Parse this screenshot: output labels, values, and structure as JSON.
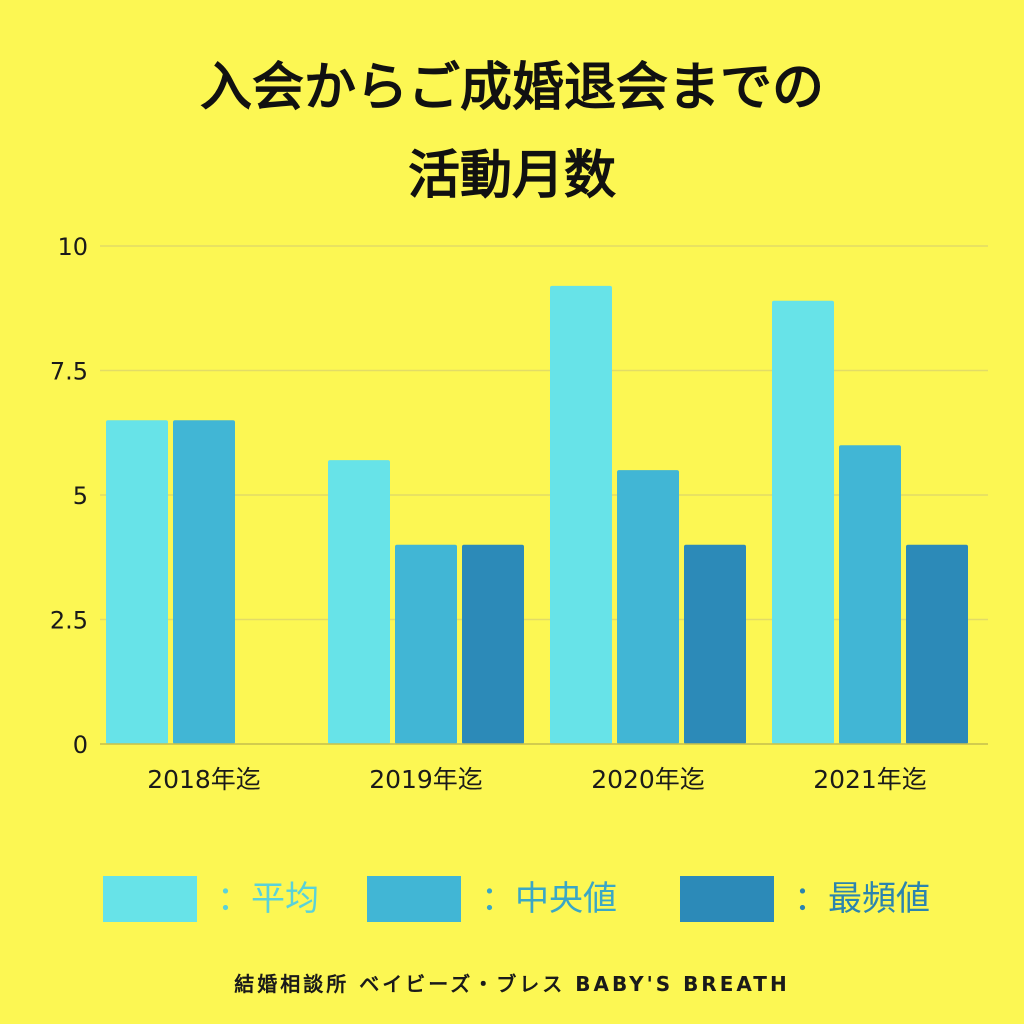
{
  "colors": {
    "background": "#fcf753",
    "gridline": "#e2dc66",
    "axis_text": "#1a1a1a",
    "title_text": "#111111",
    "footer_text": "#1a1a1a"
  },
  "title": {
    "line1": "入会からご成婚退会までの",
    "line2": "活動月数"
  },
  "legend": [
    {
      "color": "#67e3e8",
      "label": "：平均",
      "label_color": "#5ad2d9"
    },
    {
      "color": "#41b6d5",
      "label": "：中央値",
      "label_color": "#3aa7c6"
    },
    {
      "color": "#2c8ab8",
      "label": "：最頻値",
      "label_color": "#2b84ae"
    }
  ],
  "footer": {
    "text": "結婚相談所 ベイビーズ・ブレス BABY'S BREATH"
  },
  "chart_data": {
    "type": "bar",
    "categories": [
      "2018年迄",
      "2019年迄",
      "2020年迄",
      "2021年迄"
    ],
    "series": [
      {
        "name": "平均",
        "color": "#67e3e8",
        "values": [
          6.5,
          5.7,
          9.2,
          8.9
        ]
      },
      {
        "name": "中央値",
        "color": "#41b6d5",
        "values": [
          6.5,
          4.0,
          5.5,
          6.0
        ]
      },
      {
        "name": "最頻値",
        "color": "#2c8ab8",
        "values": [
          null,
          4.0,
          4.0,
          4.0
        ]
      }
    ],
    "yticks": [
      0,
      2.5,
      5,
      7.5,
      10
    ],
    "ytick_labels": [
      "0",
      "2.5",
      "5",
      "7.5",
      "10"
    ],
    "ylim": [
      0,
      10
    ],
    "grid": true,
    "legend_position": "bottom"
  }
}
